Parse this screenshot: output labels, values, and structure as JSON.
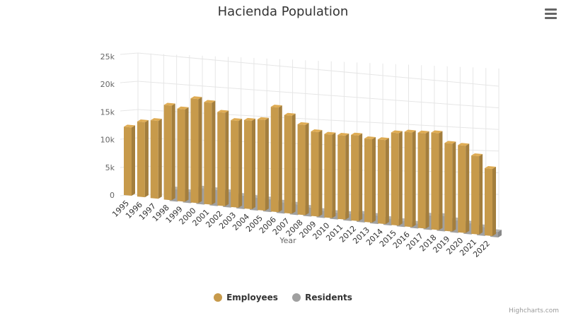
{
  "title": "Hacienda Population",
  "credits": "Highcharts.com",
  "menu_icon": "hamburger-menu-icon",
  "colors": {
    "employees": "#c79a4b",
    "residents": "#a0a0a0",
    "grid": "#e6e6e6",
    "axis_text": "#666666"
  },
  "chart_data": {
    "type": "bar",
    "title": "Hacienda Population",
    "xlabel": "Year",
    "ylabel": "",
    "ylim": [
      0,
      25000
    ],
    "yticks": [
      0,
      5000,
      10000,
      15000,
      20000,
      25000
    ],
    "ytick_labels": [
      "0",
      "5k",
      "10k",
      "15k",
      "20k",
      "25k"
    ],
    "grid": true,
    "legend": "bottom",
    "categories": [
      "1995",
      "1996",
      "1997",
      "1998",
      "1999",
      "2000",
      "2001",
      "2002",
      "2003",
      "2004",
      "2005",
      "2006",
      "2007",
      "2008",
      "2009",
      "2010",
      "2011",
      "2012",
      "2013",
      "2014",
      "2015",
      "2016",
      "2017",
      "2018",
      "2019",
      "2020",
      "2021",
      "2022"
    ],
    "series": [
      {
        "name": "Employees",
        "values": [
          12200,
          13400,
          13900,
          16900,
          16500,
          18600,
          18200,
          16700,
          15500,
          15800,
          16200,
          18700,
          17500,
          16100,
          15100,
          14900,
          15000,
          15300,
          14900,
          15000,
          16500,
          16900,
          17000,
          17300,
          15700,
          15600,
          14000,
          12000
        ]
      },
      {
        "name": "Residents",
        "values": [
          0,
          0,
          0,
          2200,
          2000,
          2900,
          2900,
          2800,
          2400,
          2300,
          2300,
          2000,
          1900,
          1600,
          1300,
          1200,
          1300,
          1600,
          1500,
          1200,
          1100,
          900,
          2600,
          2800,
          2300,
          2000,
          1600,
          1000
        ]
      }
    ]
  }
}
